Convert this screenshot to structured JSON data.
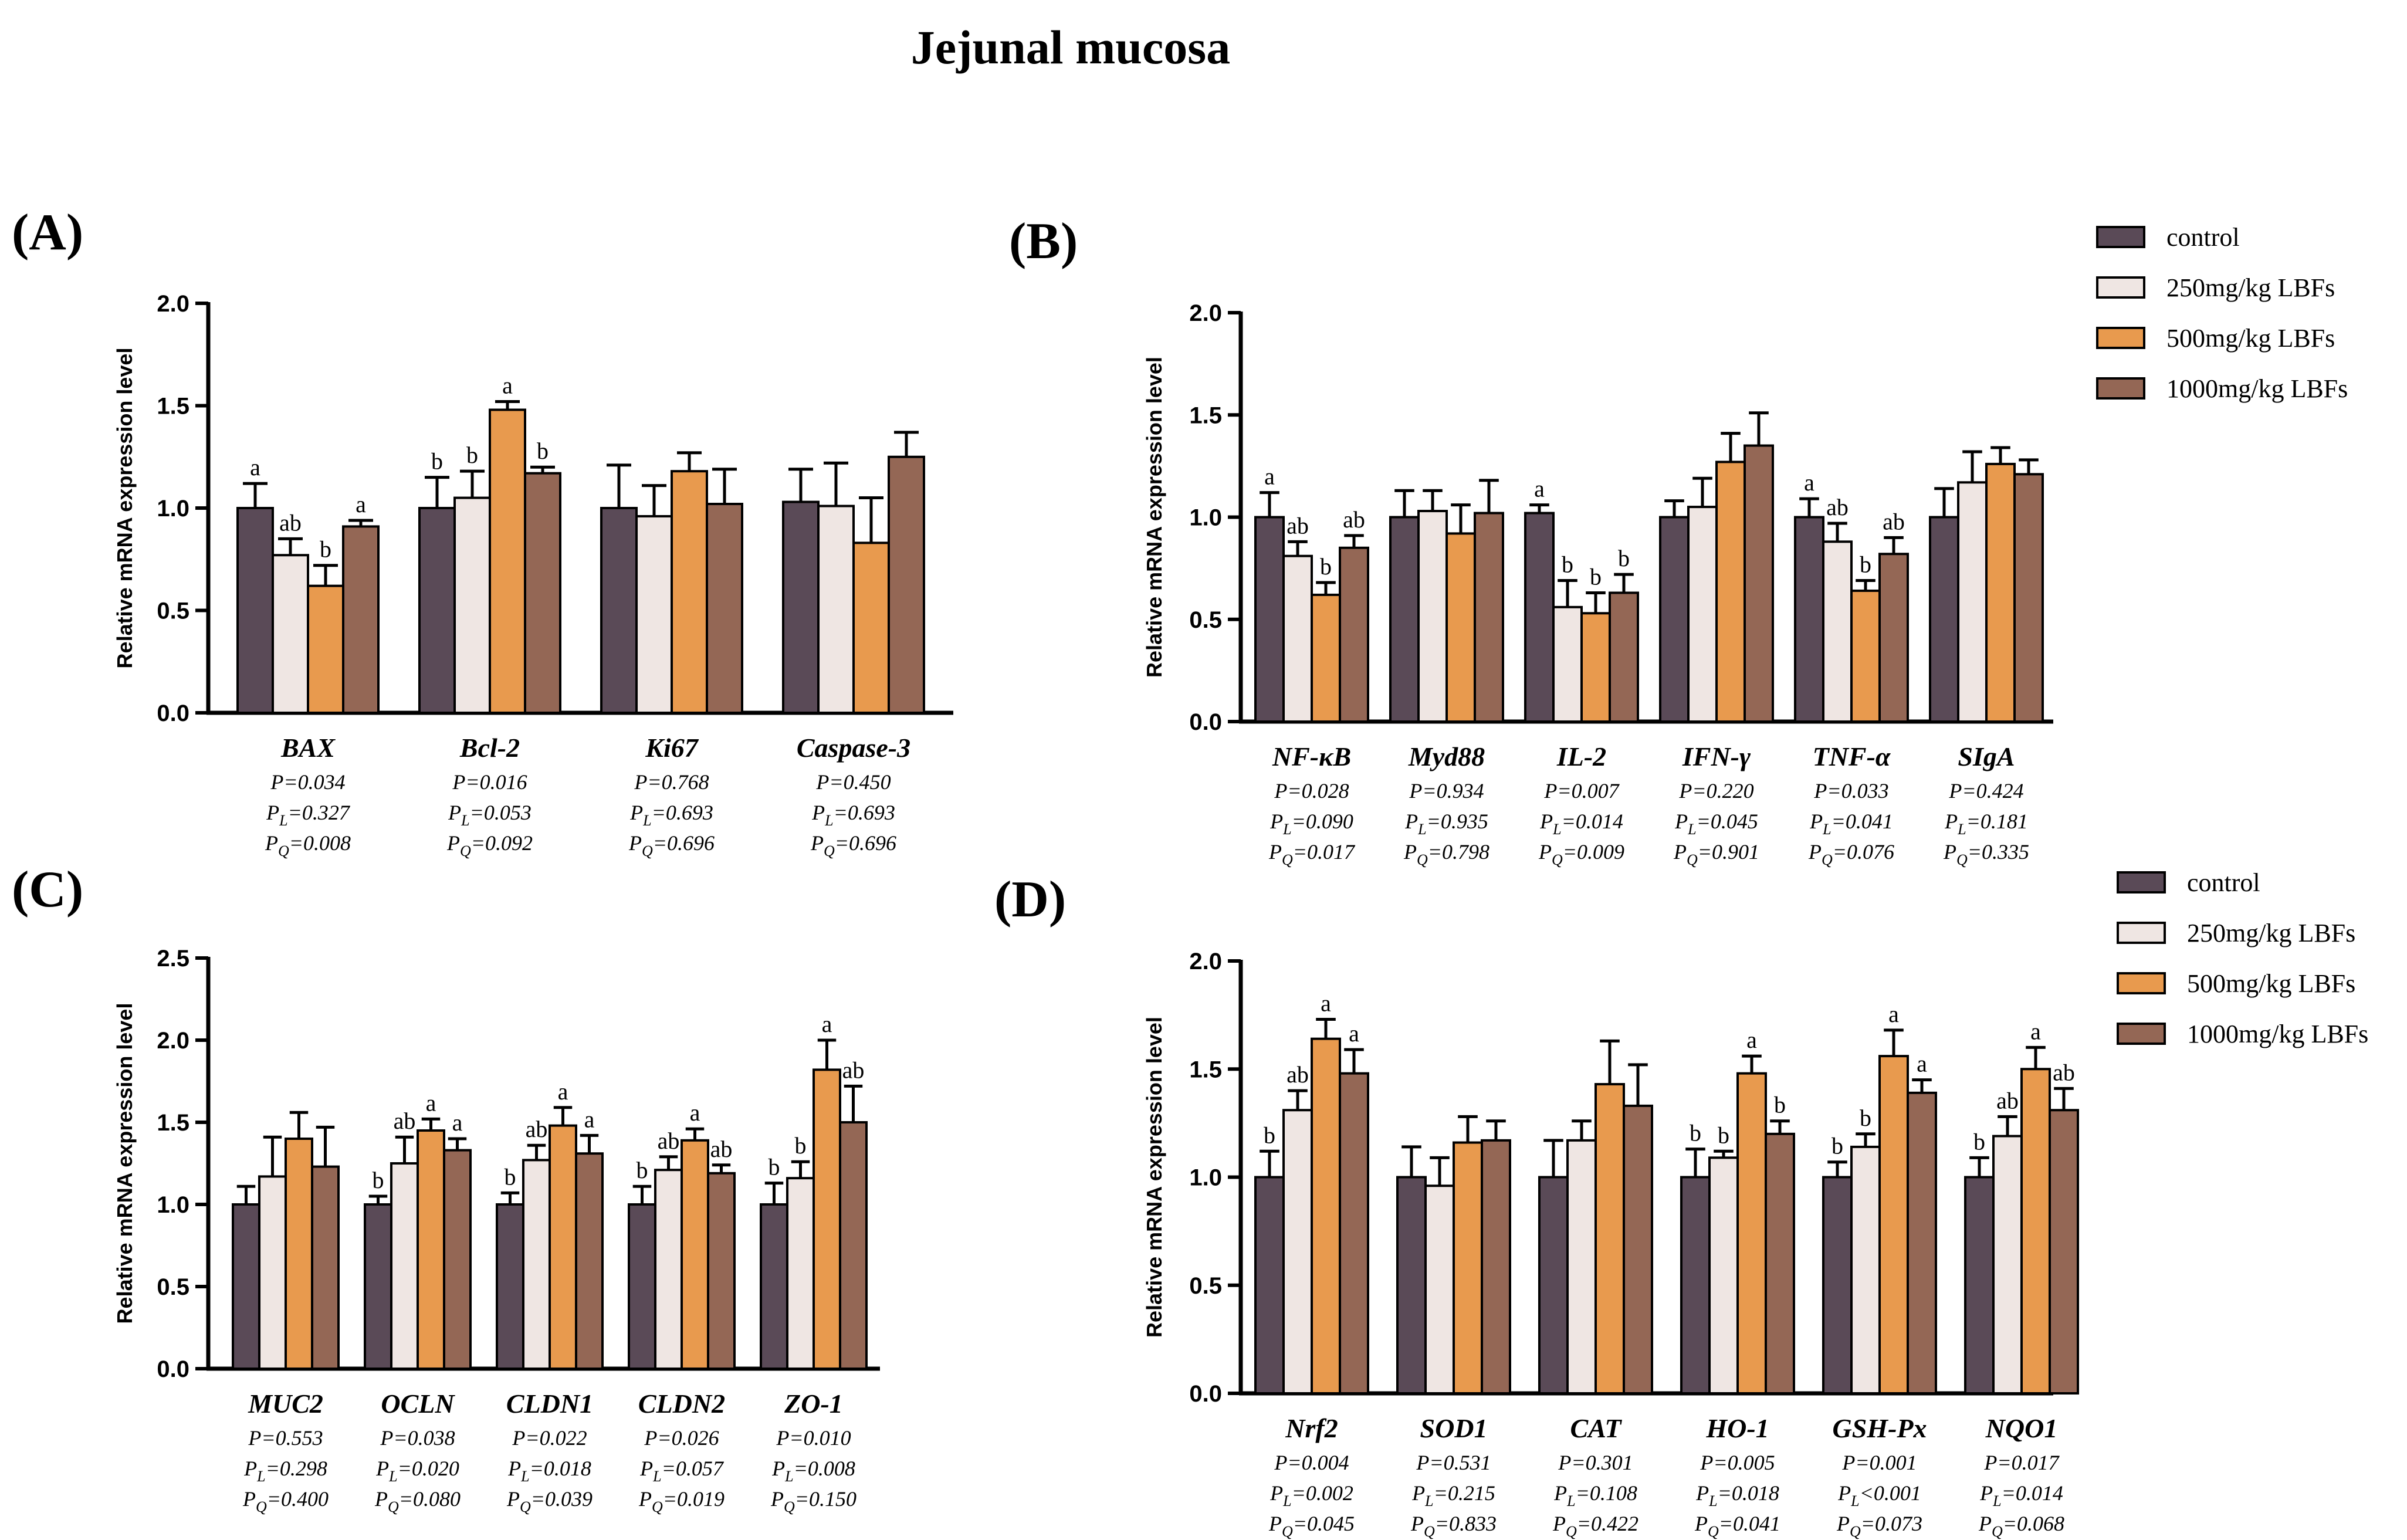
{
  "figure_title": "Jejunal mucosa",
  "colors": {
    "control": "#5a4a57",
    "g250": "#efe6e3",
    "g500": "#e89a4e",
    "g1000": "#946755",
    "axis": "#000000",
    "bar_stroke": "#000000"
  },
  "legend": {
    "entries": [
      "control",
      "250mg/kg LBFs",
      "500mg/kg LBFs",
      "1000mg/kg LBFs"
    ]
  },
  "chart_data": [
    {
      "panel": "(A)",
      "type": "bar",
      "ylabel": "Relative mRNA expression level",
      "ylim": [
        0,
        2.0
      ],
      "yticks": [
        "0.0",
        "0.5",
        "1.0",
        "1.5",
        "2.0"
      ],
      "categories": [
        "BAX",
        "Bcl-2",
        "Ki67",
        "Caspase-3"
      ],
      "series": [
        {
          "name": "control",
          "values": [
            1.0,
            1.0,
            1.0,
            1.03
          ],
          "errors": [
            0.12,
            0.15,
            0.21,
            0.16
          ],
          "letters": [
            "a",
            "b",
            "",
            ""
          ]
        },
        {
          "name": "250mg/kg LBFs",
          "values": [
            0.77,
            1.05,
            0.96,
            1.01
          ],
          "errors": [
            0.08,
            0.13,
            0.15,
            0.21
          ],
          "letters": [
            "ab",
            "b",
            "",
            ""
          ]
        },
        {
          "name": "500mg/kg LBFs",
          "values": [
            0.62,
            1.48,
            1.18,
            0.83
          ],
          "errors": [
            0.1,
            0.04,
            0.09,
            0.22
          ],
          "letters": [
            "b",
            "a",
            "",
            ""
          ]
        },
        {
          "name": "1000mg/kg LBFs",
          "values": [
            0.91,
            1.17,
            1.02,
            1.25
          ],
          "errors": [
            0.03,
            0.03,
            0.17,
            0.12
          ],
          "letters": [
            "a",
            "b",
            "",
            ""
          ]
        }
      ],
      "stats": [
        [
          "P=0.034",
          "P=0.016",
          "P=0.768",
          "P=0.450"
        ],
        [
          "P_L=0.327",
          "P_L=0.053",
          "P_L=0.693",
          "P_L=0.693"
        ],
        [
          "P_Q=0.008",
          "P_Q=0.092",
          "P_Q=0.696",
          "P_Q=0.696"
        ]
      ]
    },
    {
      "panel": "(B)",
      "type": "bar",
      "ylabel": "Relative mRNA expression level",
      "ylim": [
        0,
        2.0
      ],
      "yticks": [
        "0.0",
        "0.5",
        "1.0",
        "1.5",
        "2.0"
      ],
      "categories": [
        "NF-κB",
        "Myd88",
        "IL-2",
        "IFN-γ",
        "TNF-α",
        "SIgA"
      ],
      "series": [
        {
          "name": "control",
          "values": [
            1.0,
            1.0,
            1.02,
            1.0,
            1.0,
            1.0
          ],
          "errors": [
            0.12,
            0.13,
            0.04,
            0.08,
            0.09,
            0.14
          ],
          "letters": [
            "a",
            "",
            "a",
            "",
            "a",
            ""
          ]
        },
        {
          "name": "250mg/kg LBFs",
          "values": [
            0.81,
            1.03,
            0.56,
            1.05,
            0.88,
            1.17
          ],
          "errors": [
            0.07,
            0.1,
            0.13,
            0.14,
            0.09,
            0.15
          ],
          "letters": [
            "ab",
            "",
            "b",
            "",
            "ab",
            ""
          ]
        },
        {
          "name": "500mg/kg LBFs",
          "values": [
            0.62,
            0.92,
            0.53,
            1.27,
            0.64,
            1.26
          ],
          "errors": [
            0.06,
            0.14,
            0.1,
            0.14,
            0.05,
            0.08
          ],
          "letters": [
            "b",
            "",
            "b",
            "",
            "b",
            ""
          ]
        },
        {
          "name": "1000mg/kg LBFs",
          "values": [
            0.85,
            1.02,
            0.63,
            1.35,
            0.82,
            1.21
          ],
          "errors": [
            0.06,
            0.16,
            0.09,
            0.16,
            0.08,
            0.07
          ],
          "letters": [
            "ab",
            "",
            "b",
            "",
            "ab",
            ""
          ]
        }
      ],
      "stats": [
        [
          "P=0.028",
          "P=0.934",
          "P=0.007",
          "P=0.220",
          "P=0.033",
          "P=0.424"
        ],
        [
          "P_L=0.090",
          "P_L=0.935",
          "P_L=0.014",
          "P_L=0.045",
          "P_L=0.041",
          "P_L=0.181"
        ],
        [
          "P_Q=0.017",
          "P_Q=0.798",
          "P_Q=0.009",
          "P_Q=0.901",
          "P_Q=0.076",
          "P_Q=0.335"
        ]
      ]
    },
    {
      "panel": "(C)",
      "type": "bar",
      "ylabel": "Relative mRNA expression level",
      "ylim": [
        0,
        2.5
      ],
      "yticks": [
        "0.0",
        "0.5",
        "1.0",
        "1.5",
        "2.0",
        "2.5"
      ],
      "categories": [
        "MUC2",
        "OCLN",
        "CLDN1",
        "CLDN2",
        "ZO-1"
      ],
      "series": [
        {
          "name": "control",
          "values": [
            1.0,
            1.0,
            1.0,
            1.0,
            1.0
          ],
          "errors": [
            0.11,
            0.05,
            0.07,
            0.11,
            0.13
          ],
          "letters": [
            "",
            "b",
            "b",
            "b",
            "b"
          ]
        },
        {
          "name": "250mg/kg LBFs",
          "values": [
            1.17,
            1.25,
            1.27,
            1.21,
            1.16
          ],
          "errors": [
            0.24,
            0.16,
            0.09,
            0.08,
            0.1
          ],
          "letters": [
            "",
            "ab",
            "ab",
            "ab",
            "b"
          ]
        },
        {
          "name": "500mg/kg LBFs",
          "values": [
            1.4,
            1.45,
            1.48,
            1.39,
            1.82
          ],
          "errors": [
            0.16,
            0.07,
            0.11,
            0.07,
            0.18
          ],
          "letters": [
            "",
            "a",
            "a",
            "a",
            "a"
          ]
        },
        {
          "name": "1000mg/kg LBFs",
          "values": [
            1.23,
            1.33,
            1.31,
            1.19,
            1.5
          ],
          "errors": [
            0.24,
            0.07,
            0.11,
            0.05,
            0.22
          ],
          "letters": [
            "",
            "a",
            "a",
            "ab",
            "ab"
          ]
        }
      ],
      "stats": [
        [
          "P=0.553",
          "P=0.038",
          "P=0.022",
          "P=0.026",
          "P=0.010"
        ],
        [
          "P_L=0.298",
          "P_L=0.020",
          "P_L=0.018",
          "P_L=0.057",
          "P_L=0.008"
        ],
        [
          "P_Q=0.400",
          "P_Q=0.080",
          "P_Q=0.039",
          "P_Q=0.019",
          "P_Q=0.150"
        ]
      ]
    },
    {
      "panel": "(D)",
      "type": "bar",
      "ylabel": "Relative mRNA expression level",
      "ylim": [
        0,
        2.0
      ],
      "yticks": [
        "0.0",
        "0.5",
        "1.0",
        "1.5",
        "2.0"
      ],
      "categories": [
        "Nrf2",
        "SOD1",
        "CAT",
        "HO-1",
        "GSH-Px",
        "NQO1"
      ],
      "series": [
        {
          "name": "control",
          "values": [
            1.0,
            1.0,
            1.0,
            1.0,
            1.0,
            1.0
          ],
          "errors": [
            0.12,
            0.14,
            0.17,
            0.13,
            0.07,
            0.09
          ],
          "letters": [
            "b",
            "",
            "",
            "b",
            "b",
            "b"
          ]
        },
        {
          "name": "250mg/kg LBFs",
          "values": [
            1.31,
            0.96,
            1.17,
            1.09,
            1.14,
            1.19
          ],
          "errors": [
            0.09,
            0.13,
            0.09,
            0.03,
            0.06,
            0.09
          ],
          "letters": [
            "ab",
            "",
            "",
            "b",
            "b",
            "ab"
          ]
        },
        {
          "name": "500mg/kg LBFs",
          "values": [
            1.64,
            1.16,
            1.43,
            1.48,
            1.56,
            1.5
          ],
          "errors": [
            0.09,
            0.12,
            0.2,
            0.08,
            0.12,
            0.1
          ],
          "letters": [
            "a",
            "",
            "",
            "a",
            "a",
            "a"
          ]
        },
        {
          "name": "1000mg/kg LBFs",
          "values": [
            1.48,
            1.17,
            1.33,
            1.2,
            1.39,
            1.31
          ],
          "errors": [
            0.11,
            0.09,
            0.19,
            0.06,
            0.06,
            0.1
          ],
          "letters": [
            "a",
            "",
            "",
            "b",
            "a",
            "ab"
          ]
        }
      ],
      "stats": [
        [
          "P=0.004",
          "P=0.531",
          "P=0.301",
          "P=0.005",
          "P=0.001",
          "P=0.017"
        ],
        [
          "P_L=0.002",
          "P_L=0.215",
          "P_L=0.108",
          "P_L=0.018",
          "P_L<0.001",
          "P_L=0.014"
        ],
        [
          "P_Q=0.045",
          "P_Q=0.833",
          "P_Q=0.422",
          "P_Q=0.041",
          "P_Q=0.073",
          "P_Q=0.068"
        ]
      ]
    }
  ]
}
